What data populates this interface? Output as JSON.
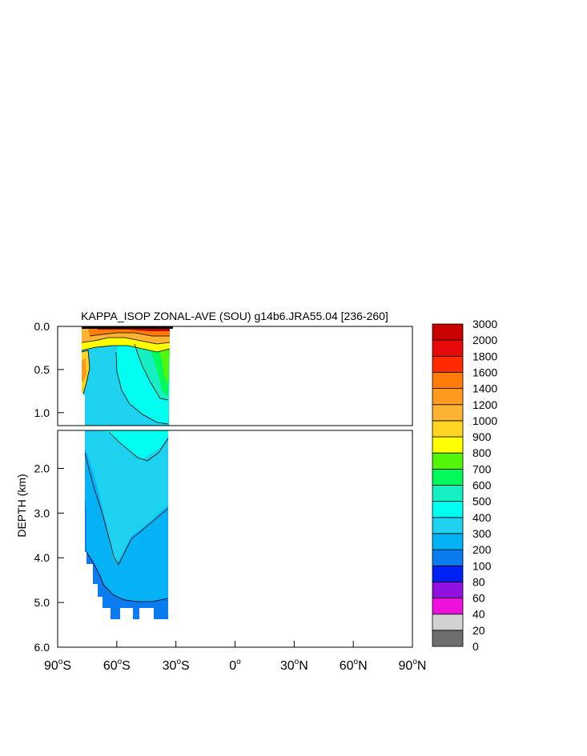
{
  "chart_data": {
    "type": "heatmap",
    "title": "KAPPA_ISOP ZONAL-AVE (SOU) g14b6.JRA55.04 [236-260]",
    "ylabel": "DEPTH (km)",
    "xlabel": "",
    "xlim": [
      -90,
      90
    ],
    "x_ticks": [
      {
        "value": -90,
        "num": "90",
        "hemi": "S"
      },
      {
        "value": -60,
        "num": "60",
        "hemi": "S"
      },
      {
        "value": -30,
        "num": "30",
        "hemi": "S"
      },
      {
        "value": 0,
        "num": "0",
        "hemi": ""
      },
      {
        "value": 30,
        "num": "30",
        "hemi": "N"
      },
      {
        "value": 60,
        "num": "60",
        "hemi": "N"
      },
      {
        "value": 90,
        "num": "90",
        "hemi": "N"
      }
    ],
    "upper_panel": {
      "ylim": [
        0.0,
        1.15
      ],
      "y_ticks": [
        {
          "value": 0.0,
          "label": "0.0"
        },
        {
          "value": 0.5,
          "label": "0.5"
        },
        {
          "value": 1.0,
          "label": "1.0"
        }
      ]
    },
    "lower_panel": {
      "ylim": [
        1.15,
        6.0
      ],
      "y_ticks": [
        {
          "value": 2.0,
          "label": "2.0"
        },
        {
          "value": 3.0,
          "label": "3.0"
        },
        {
          "value": 4.0,
          "label": "4.0"
        },
        {
          "value": 5.0,
          "label": "5.0"
        },
        {
          "value": 6.0,
          "label": "6.0"
        }
      ]
    },
    "colorbar": {
      "levels": [
        "0",
        "20",
        "40",
        "60",
        "80",
        "100",
        "200",
        "300",
        "400",
        "500",
        "600",
        "700",
        "800",
        "900",
        "1000",
        "1200",
        "1400",
        "1600",
        "1800",
        "2000",
        "3000"
      ],
      "colors": [
        "#6e6e6e",
        "#d2d2d2",
        "#ee10dd",
        "#9010e0",
        "#0020f5",
        "#0b7bf0",
        "#05b2f5",
        "#1ed2ef",
        "#00fff0",
        "#15efc2",
        "#00fa5a",
        "#55f50a",
        "#ffff00",
        "#ffd423",
        "#ffb333",
        "#ff9a20",
        "#ff7c0a",
        "#ff2a00",
        "#e80a0a",
        "#c80000"
      ]
    },
    "field": {
      "extent_lat": [
        -78,
        -32
      ],
      "bands": [
        {
          "range": "200-300",
          "depth_km": [
            4.0,
            5.4
          ]
        },
        {
          "range": "300-400",
          "depth_km": [
            1.6,
            4.5
          ]
        },
        {
          "range": "400-500",
          "depth_km": [
            0.1,
            1.8
          ]
        },
        {
          "range": "500-600",
          "depth_km": [
            0.3,
            1.1
          ]
        },
        {
          "range": "600-900",
          "depth_km": [
            0.1,
            0.8
          ]
        },
        {
          "range": "900-3000",
          "depth_km": [
            0.0,
            0.2
          ]
        }
      ]
    }
  }
}
